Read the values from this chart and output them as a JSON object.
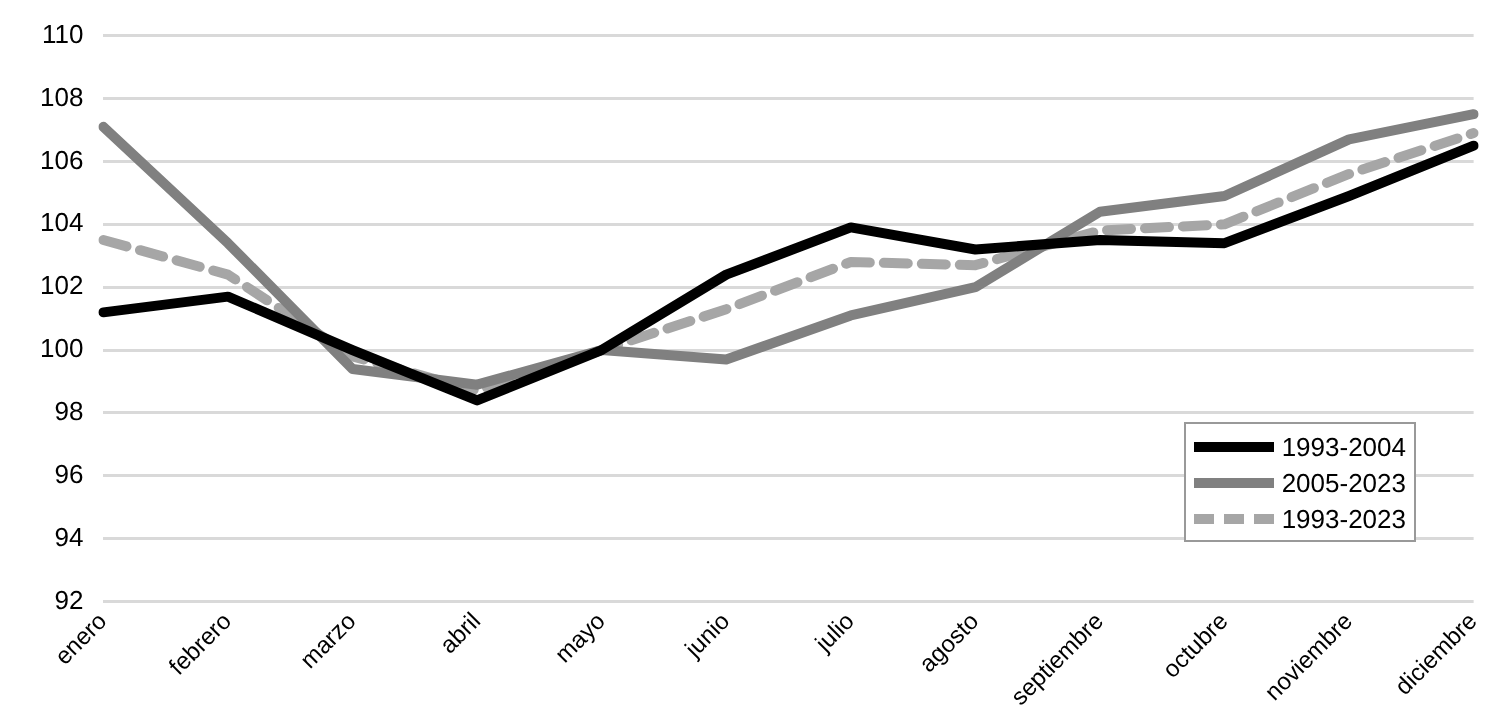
{
  "chart_data": {
    "type": "line",
    "categories": [
      "enero",
      "febrero",
      "marzo",
      "abril",
      "mayo",
      "junio",
      "julio",
      "agosto",
      "septiembre",
      "octubre",
      "noviembre",
      "diciembre"
    ],
    "series": [
      {
        "name": "1993-2004",
        "color": "#000000",
        "line_style": "solid",
        "values": [
          101.2,
          101.7,
          100.0,
          98.4,
          100.0,
          102.4,
          103.9,
          103.2,
          103.5,
          103.4,
          104.9,
          106.5
        ]
      },
      {
        "name": "2005-2023",
        "color": "#808080",
        "line_style": "solid",
        "values": [
          107.1,
          103.4,
          99.4,
          98.9,
          100.0,
          99.7,
          101.1,
          102.0,
          104.4,
          104.9,
          106.7,
          107.5
        ]
      },
      {
        "name": "1993-2023",
        "color": "#a6a6a6",
        "line_style": "dashed",
        "values": [
          103.5,
          102.4,
          99.8,
          98.7,
          100.0,
          101.3,
          102.8,
          102.7,
          103.8,
          104.0,
          105.6,
          106.9
        ]
      }
    ],
    "ylim": [
      92,
      110
    ],
    "yticks": [
      92,
      94,
      96,
      98,
      100,
      102,
      104,
      106,
      108,
      110
    ],
    "grid": "y",
    "legend": "bottom right",
    "marker": "none"
  }
}
